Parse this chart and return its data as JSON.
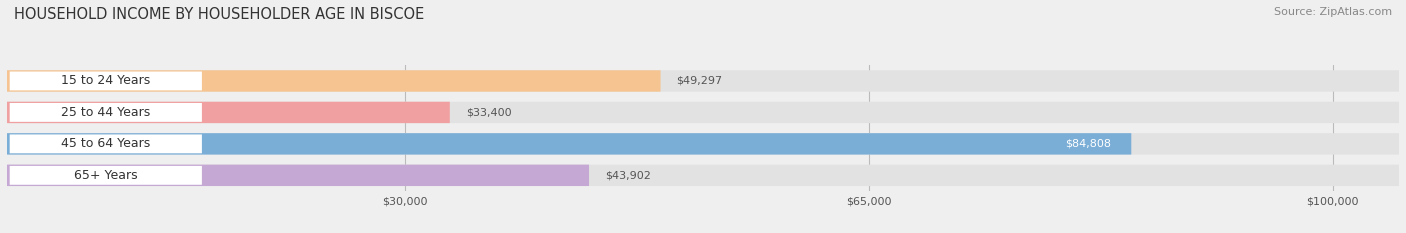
{
  "title": "HOUSEHOLD INCOME BY HOUSEHOLDER AGE IN BISCOE",
  "source": "Source: ZipAtlas.com",
  "categories": [
    "15 to 24 Years",
    "25 to 44 Years",
    "45 to 64 Years",
    "65+ Years"
  ],
  "values": [
    49297,
    33400,
    84808,
    43902
  ],
  "bar_colors": [
    "#f5c490",
    "#f0a0a0",
    "#7aaed6",
    "#c5a8d4"
  ],
  "label_colors": [
    "#555555",
    "#555555",
    "#ffffff",
    "#555555"
  ],
  "x_ticks": [
    30000,
    65000,
    100000
  ],
  "x_tick_labels": [
    "$30,000",
    "$65,000",
    "$100,000"
  ],
  "xlim_max": 105000,
  "background_color": "#efefef",
  "bar_background_color": "#e2e2e2",
  "title_fontsize": 10.5,
  "source_fontsize": 8,
  "label_fontsize": 8,
  "tick_fontsize": 8,
  "cat_fontsize": 9
}
